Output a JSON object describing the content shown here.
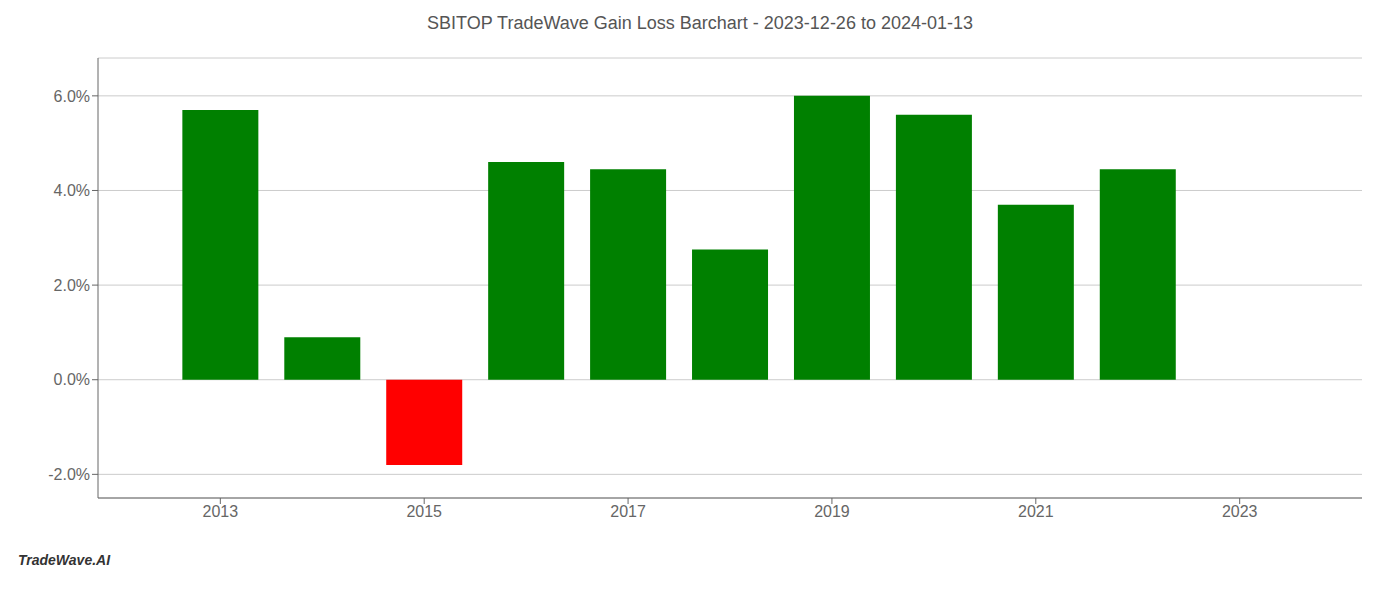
{
  "chart_data": {
    "type": "bar",
    "title": "SBITOP TradeWave Gain Loss Barchart - 2023-12-26 to 2024-01-13",
    "annotations": [
      "TradeWave.AI"
    ],
    "x": [
      2013,
      2014,
      2015,
      2016,
      2017,
      2018,
      2019,
      2020,
      2021,
      2022
    ],
    "values": [
      0.057,
      0.009,
      -0.018,
      0.046,
      0.0445,
      0.0275,
      0.06,
      0.056,
      0.037,
      0.0445
    ],
    "colors": [
      "#008000",
      "#008000",
      "#ff0000",
      "#008000",
      "#008000",
      "#008000",
      "#008000",
      "#008000",
      "#008000",
      "#008000"
    ],
    "xlim": [
      2011.8,
      2024.2
    ],
    "xticks": [
      2013,
      2015,
      2017,
      2019,
      2021,
      2023
    ],
    "ylim": [
      -0.025,
      0.068
    ],
    "yticks": [
      {
        "value": -0.02,
        "label": "-2.0%"
      },
      {
        "value": 0.0,
        "label": "0.0%"
      },
      {
        "value": 0.02,
        "label": "2.0%"
      },
      {
        "value": 0.04,
        "label": "4.0%"
      },
      {
        "value": 0.06,
        "label": "6.0%"
      }
    ],
    "grid": true
  }
}
